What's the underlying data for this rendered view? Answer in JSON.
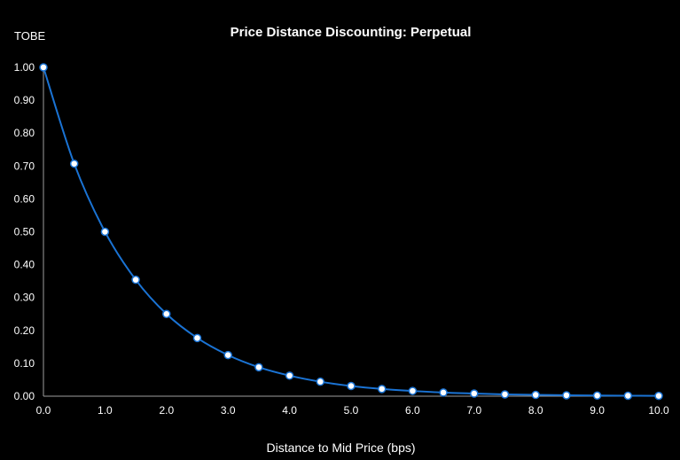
{
  "chart_data": {
    "type": "line",
    "title": "Price Distance Discounting: Perpetual",
    "xlabel": "Distance to Mid Price (bps)",
    "ylabel": "TOBE",
    "xlim": [
      0,
      10
    ],
    "ylim": [
      0,
      1
    ],
    "x_ticks": [
      "0.0",
      "1.0",
      "2.0",
      "3.0",
      "4.0",
      "5.0",
      "6.0",
      "7.0",
      "8.0",
      "9.0",
      "10.0"
    ],
    "y_ticks": [
      "0.00",
      "0.10",
      "0.20",
      "0.30",
      "0.40",
      "0.50",
      "0.60",
      "0.70",
      "0.80",
      "0.90",
      "1.00"
    ],
    "grid": false,
    "legend": null,
    "series": [
      {
        "name": "TOBE",
        "color": "#1a73d4",
        "x": [
          0,
          0.5,
          1,
          1.5,
          2,
          2.5,
          3,
          3.5,
          4,
          4.5,
          5,
          5.5,
          6,
          6.5,
          7,
          7.5,
          8,
          8.5,
          9,
          9.5,
          10
        ],
        "values": [
          1.0,
          0.707,
          0.5,
          0.354,
          0.25,
          0.177,
          0.125,
          0.088,
          0.0625,
          0.044,
          0.031,
          0.022,
          0.016,
          0.011,
          0.008,
          0.0055,
          0.0039,
          0.0028,
          0.002,
          0.0014,
          0.001
        ]
      }
    ]
  },
  "colors": {
    "background": "#000000",
    "line": "#1a73d4",
    "marker_fill": "#ffffff",
    "axis": "#9e9e9e",
    "text": "#ffffff"
  }
}
